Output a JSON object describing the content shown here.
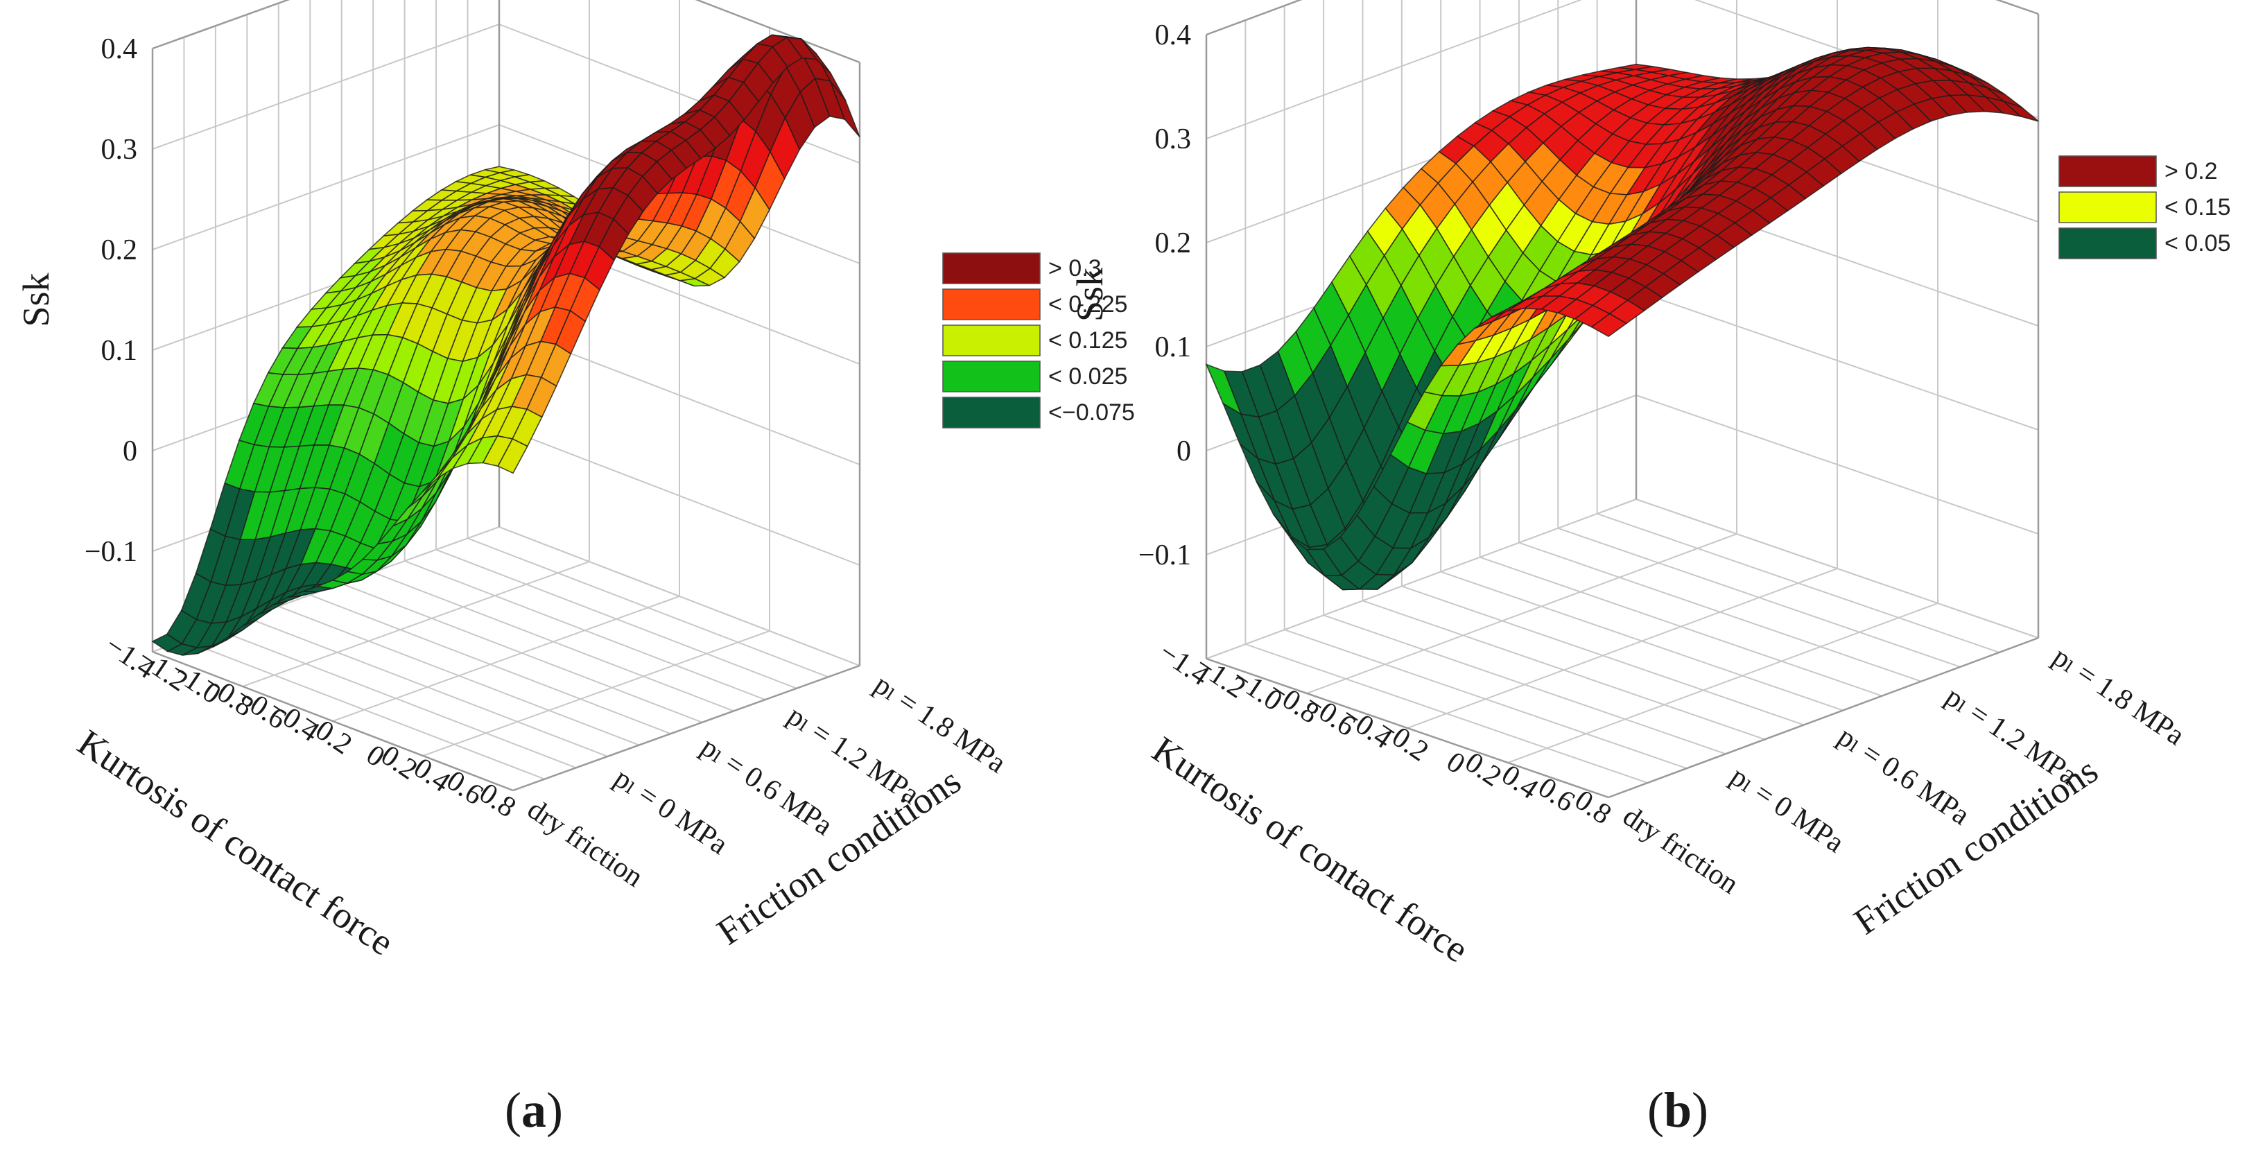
{
  "figure": {
    "panels": [
      "a",
      "b"
    ]
  },
  "chart_data": [
    {
      "type": "surface",
      "panel": "a",
      "panel_label": "(a)",
      "zlabel": "Ssk",
      "xlabel": "Kurtosis of contact force",
      "ylabel": "Friction conditions",
      "z_ticks": [
        "0.4",
        "0.3",
        "0.2",
        "0.1",
        "0",
        "−0.1"
      ],
      "z_range": [
        -0.2,
        0.4
      ],
      "x_ticks": [
        "−1.4",
        "−1.2",
        "−1.0",
        "−0.8",
        "−0.6",
        "−0.4",
        "−0.2",
        "0",
        "0.2",
        "0.4",
        "0.6",
        "0.8"
      ],
      "x_range": [
        -1.4,
        0.8
      ],
      "y_ticks": [
        "dry friction",
        "pₗ = 0 MPa",
        "pₗ = 0.6 MPa",
        "pₗ = 1.2 MPa",
        "pₗ = 1.8 MPa"
      ],
      "legend": [
        {
          "label": "> 0.3",
          "color": "#8e0f0f"
        },
        {
          "label": "< 0.225",
          "color": "#ff4a10"
        },
        {
          "label": "< 0.125",
          "color": "#c8f000"
        },
        {
          "label": "< 0.025",
          "color": "#12c21a"
        },
        {
          "label": "<−0.075",
          "color": "#0b5e3c"
        }
      ],
      "thresholds": [
        0.3,
        0.225,
        0.125,
        0.025,
        -0.075
      ]
    },
    {
      "type": "surface",
      "panel": "b",
      "panel_label": "(b)",
      "zlabel": "Ssk",
      "xlabel": "Kurtosis of contact force",
      "ylabel": "Friction conditions",
      "z_ticks": [
        "0.4",
        "0.3",
        "0.2",
        "0.1",
        "0",
        "−0.1"
      ],
      "z_range": [
        -0.2,
        0.4
      ],
      "x_ticks": [
        "−1.4",
        "−1.2",
        "−1.0",
        "−0.8",
        "−0.6",
        "−0.4",
        "−0.2",
        "0",
        "0.2",
        "0.4",
        "0.6",
        "0.8"
      ],
      "x_range": [
        -1.4,
        0.8
      ],
      "y_ticks": [
        "dry friction",
        "pₗ = 0 MPa",
        "pₗ = 0.6 MPa",
        "pₗ = 1.2 MPa",
        "pₗ = 1.8 MPa"
      ],
      "legend": [
        {
          "label": "> 0.2",
          "color": "#9a1010"
        },
        {
          "label": "< 0.15",
          "color": "#eaff00"
        },
        {
          "label": "< 0.05",
          "color": "#0b5e3c"
        }
      ],
      "thresholds": [
        0.2,
        0.15,
        0.05
      ]
    }
  ]
}
